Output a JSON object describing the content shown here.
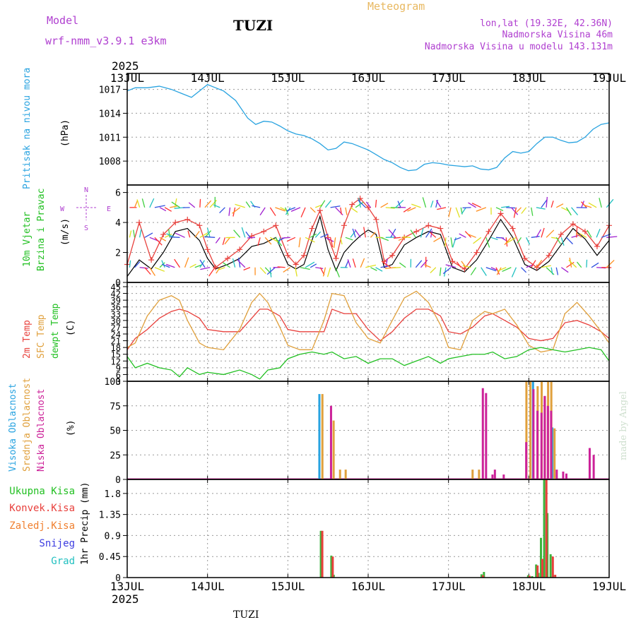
{
  "header": {
    "model_label": "Model",
    "model_name": "wrf-nmm_v3.9.1 e3km",
    "station": "TUZI",
    "meteogram_label": "Meteogram",
    "lonlat": "lon,lat (19.32E, 42.36N)",
    "elevation": "Nadmorska Visina 46m",
    "model_elevation": "Nadmorska Visina u modelu 143.131m",
    "year": "2025",
    "footer_station": "TUZI",
    "watermark": "made by Angel"
  },
  "colors": {
    "pressure": "#29a3e0",
    "wind_speed": "#000000",
    "gust": "#e8403c",
    "temp2m": "#e8403c",
    "sfc_temp": "#e0a03c",
    "dewpoint": "#22c022",
    "cloud_high": "#29a3e0",
    "cloud_mid": "#e0a03c",
    "cloud_low": "#cc2299",
    "precip_total": "#3cb43c",
    "precip_conv": "#e8403c",
    "precip_frozen": "#f08030",
    "snow": "#3c3ce0",
    "hail": "#22c0c0",
    "purple": "#b040d0",
    "gold": "#e8b860"
  },
  "chart_data": [
    {
      "type": "line",
      "title": "Pritisak na nivou mora",
      "ylabel": "(hPa)",
      "x_ticks": [
        "13JUL",
        "14JUL",
        "15JUL",
        "16JUL",
        "17JUL",
        "18JUL",
        "19JUL"
      ],
      "ylim": [
        1005,
        1019
      ],
      "y_ticks": [
        1008,
        1011,
        1014,
        1017
      ],
      "series": [
        {
          "name": "Pressure",
          "x": [
            0,
            0.1,
            0.25,
            0.4,
            0.55,
            0.7,
            0.8,
            0.9,
            1.0,
            1.1,
            1.2,
            1.35,
            1.5,
            1.6,
            1.7,
            1.8,
            1.9,
            2.0,
            2.1,
            2.2,
            2.3,
            2.4,
            2.5,
            2.6,
            2.7,
            2.8,
            2.9,
            3.0,
            3.1,
            3.2,
            3.3,
            3.4,
            3.5,
            3.6,
            3.7,
            3.8,
            3.9,
            4.0,
            4.1,
            4.2,
            4.3,
            4.4,
            4.5,
            4.6,
            4.7,
            4.8,
            4.9,
            5.0,
            5.1,
            5.2,
            5.3,
            5.4,
            5.5,
            5.6,
            5.7,
            5.8,
            5.9,
            6.0
          ],
          "values": [
            1016.8,
            1017.2,
            1017.2,
            1017.4,
            1017.0,
            1016.4,
            1016.0,
            1016.8,
            1017.6,
            1017.2,
            1016.8,
            1015.6,
            1013.4,
            1012.6,
            1013.0,
            1012.9,
            1012.4,
            1011.8,
            1011.4,
            1011.2,
            1010.8,
            1010.2,
            1009.4,
            1009.6,
            1010.4,
            1010.2,
            1009.8,
            1009.4,
            1008.8,
            1008.2,
            1007.8,
            1007.2,
            1006.8,
            1006.9,
            1007.6,
            1007.8,
            1007.7,
            1007.5,
            1007.4,
            1007.3,
            1007.4,
            1007.0,
            1006.9,
            1007.2,
            1008.4,
            1009.2,
            1009.0,
            1009.2,
            1010.2,
            1011.0,
            1011.0,
            1010.6,
            1010.3,
            1010.4,
            1011.0,
            1012.0,
            1012.6,
            1012.8
          ]
        }
      ]
    },
    {
      "type": "line",
      "title": "10m Vjetar Brzina i Pravac",
      "ylabel": "(m/s)",
      "compass": [
        "N",
        "S",
        "W",
        "E"
      ],
      "ylim": [
        0,
        6.5
      ],
      "y_ticks": [
        0,
        2,
        4,
        6
      ],
      "series": [
        {
          "name": "Wind speed",
          "x": [
            0,
            0.15,
            0.3,
            0.45,
            0.6,
            0.75,
            0.9,
            1.0,
            1.1,
            1.25,
            1.4,
            1.55,
            1.7,
            1.85,
            2.0,
            2.1,
            2.2,
            2.3,
            2.4,
            2.5,
            2.6,
            2.7,
            2.8,
            2.9,
            3.0,
            3.1,
            3.2,
            3.3,
            3.45,
            3.6,
            3.75,
            3.9,
            4.05,
            4.2,
            4.35,
            4.5,
            4.65,
            4.8,
            4.95,
            5.1,
            5.25,
            5.4,
            5.55,
            5.7,
            5.85,
            6.0
          ],
          "values": [
            0.4,
            1.5,
            0.9,
            2.0,
            3.4,
            3.6,
            2.8,
            1.6,
            0.9,
            1.2,
            1.6,
            2.4,
            2.6,
            3.0,
            1.2,
            0.9,
            1.2,
            2.8,
            4.4,
            2.2,
            0.8,
            2.0,
            2.6,
            3.1,
            3.5,
            3.2,
            1.0,
            1.2,
            2.5,
            3.0,
            3.4,
            3.2,
            1.0,
            0.7,
            1.5,
            2.8,
            4.2,
            3.0,
            1.2,
            0.8,
            1.4,
            2.5,
            3.6,
            2.9,
            1.8,
            2.8
          ]
        },
        {
          "name": "Gust",
          "x": [
            0,
            0.15,
            0.3,
            0.45,
            0.6,
            0.75,
            0.9,
            1.0,
            1.1,
            1.25,
            1.4,
            1.55,
            1.7,
            1.85,
            2.0,
            2.1,
            2.2,
            2.3,
            2.4,
            2.5,
            2.6,
            2.7,
            2.8,
            2.9,
            3.0,
            3.1,
            3.2,
            3.3,
            3.45,
            3.6,
            3.75,
            3.9,
            4.05,
            4.2,
            4.35,
            4.5,
            4.65,
            4.8,
            4.95,
            5.1,
            5.25,
            5.4,
            5.55,
            5.7,
            5.85,
            6.0
          ],
          "values": [
            1.2,
            4.0,
            1.5,
            3.2,
            4.0,
            4.2,
            3.8,
            2.2,
            1.0,
            1.6,
            2.2,
            3.1,
            3.4,
            3.8,
            1.8,
            1.2,
            1.8,
            3.6,
            4.8,
            3.0,
            1.6,
            3.8,
            5.2,
            5.6,
            5.0,
            4.2,
            1.4,
            1.8,
            3.0,
            3.4,
            3.8,
            3.6,
            1.4,
            0.9,
            2.0,
            3.4,
            4.6,
            3.6,
            1.6,
            1.0,
            1.8,
            3.2,
            3.9,
            3.4,
            2.4,
            3.8
          ]
        }
      ]
    },
    {
      "type": "line",
      "title": "2m Temp / SFC Temp / dewpt Temp",
      "ylabel": "(C)",
      "ylim": [
        3,
        45
      ],
      "y_ticks": [
        3,
        6,
        9,
        12,
        15,
        18,
        21,
        24,
        27,
        30,
        33,
        36,
        39,
        42,
        45
      ],
      "series": [
        {
          "name": "2m Temp",
          "x": [
            0,
            0.1,
            0.25,
            0.4,
            0.55,
            0.65,
            0.75,
            0.9,
            1.0,
            1.2,
            1.4,
            1.55,
            1.65,
            1.75,
            1.9,
            2.0,
            2.15,
            2.3,
            2.45,
            2.55,
            2.7,
            2.85,
            3.0,
            3.15,
            3.3,
            3.45,
            3.6,
            3.75,
            3.9,
            4.0,
            4.15,
            4.3,
            4.45,
            4.55,
            4.7,
            4.85,
            5.0,
            5.15,
            5.3,
            5.45,
            5.6,
            5.75,
            5.9,
            6.0
          ],
          "values": [
            17,
            22,
            26,
            31,
            34,
            35,
            34,
            31,
            26,
            25,
            25,
            31,
            35,
            35,
            32,
            26,
            25,
            25,
            25,
            35,
            33,
            33,
            26,
            21,
            25,
            31,
            35,
            35,
            32,
            25,
            24,
            27,
            32,
            33,
            30,
            27,
            22,
            21,
            22,
            29,
            30,
            28,
            25,
            22
          ]
        },
        {
          "name": "SFC Temp",
          "x": [
            0,
            0.1,
            0.25,
            0.4,
            0.55,
            0.65,
            0.75,
            0.9,
            1.0,
            1.2,
            1.4,
            1.55,
            1.65,
            1.75,
            1.9,
            2.0,
            2.15,
            2.3,
            2.45,
            2.55,
            2.7,
            2.85,
            3.0,
            3.15,
            3.3,
            3.45,
            3.6,
            3.75,
            3.9,
            4.0,
            4.15,
            4.3,
            4.45,
            4.55,
            4.7,
            4.85,
            5.0,
            5.15,
            5.3,
            5.45,
            5.6,
            5.75,
            5.9,
            6.0
          ],
          "values": [
            18,
            20,
            32,
            39,
            41,
            39,
            30,
            20,
            18,
            17,
            26,
            38,
            42,
            38,
            27,
            19,
            17,
            17,
            30,
            42,
            41,
            29,
            22,
            20,
            30,
            40,
            43,
            38,
            28,
            18,
            17,
            30,
            34,
            33,
            35,
            28,
            19,
            16,
            17,
            33,
            38,
            32,
            25,
            20
          ]
        },
        {
          "name": "dewpt Temp",
          "x": [
            0,
            0.1,
            0.25,
            0.4,
            0.55,
            0.65,
            0.75,
            0.9,
            1.0,
            1.2,
            1.4,
            1.55,
            1.65,
            1.75,
            1.9,
            2.0,
            2.15,
            2.3,
            2.45,
            2.55,
            2.7,
            2.85,
            3.0,
            3.15,
            3.3,
            3.45,
            3.6,
            3.75,
            3.9,
            4.0,
            4.15,
            4.3,
            4.45,
            4.55,
            4.7,
            4.85,
            5.0,
            5.15,
            5.3,
            5.45,
            5.6,
            5.75,
            5.9,
            6.0
          ],
          "values": [
            14,
            9,
            11,
            9,
            8,
            5,
            9,
            6,
            7,
            6,
            8,
            6,
            4,
            8,
            9,
            13,
            15,
            16,
            15,
            16,
            13,
            14,
            11,
            13,
            13,
            10,
            12,
            14,
            11,
            13,
            14,
            15,
            15,
            16,
            13,
            14,
            17,
            18,
            17,
            16,
            17,
            18,
            17,
            12
          ]
        }
      ]
    },
    {
      "type": "bar",
      "title": "Visoka / Srednja / Niska Oblacnost",
      "ylabel": "(%)",
      "ylim": [
        0,
        100
      ],
      "y_ticks": [
        0,
        25,
        50,
        75,
        100
      ],
      "series": [
        {
          "name": "Visoka Oblacnost",
          "x": [
            2.41,
            5.07,
            5.31
          ],
          "values": [
            87,
            100,
            53
          ]
        },
        {
          "name": "Srednja Oblacnost",
          "x": [
            2.43,
            2.57,
            2.65,
            2.72,
            4.3,
            4.38,
            4.97,
            5.02,
            5.11,
            5.16,
            5.2,
            5.24,
            5.28,
            5.32
          ],
          "values": [
            87,
            60,
            10,
            10,
            10,
            10,
            100,
            100,
            95,
            100,
            85,
            100,
            100,
            52
          ]
        },
        {
          "name": "Niska Oblacnost",
          "x": [
            2.52,
            4.41,
            4.45,
            4.53,
            4.56,
            4.67,
            4.95,
            5.04,
            5.09,
            5.14,
            5.18,
            5.22,
            5.26,
            5.33,
            5.41,
            5.45,
            5.74,
            5.79
          ],
          "values": [
            75,
            93,
            88,
            5,
            10,
            5,
            38,
            92,
            70,
            68,
            85,
            75,
            70,
            10,
            8,
            6,
            32,
            25
          ]
        }
      ]
    },
    {
      "type": "bar",
      "title": "1hr Precip",
      "ylabel": "(mm)",
      "legend": [
        "Ukupna Kisa",
        "Konvek.Kisa",
        "Zaledj.Kisa",
        "Snijeg",
        "Grad"
      ],
      "ylim": [
        0,
        2.1
      ],
      "y_ticks": [
        0,
        0.45,
        0.9,
        1.35,
        1.8
      ],
      "series": [
        {
          "name": "Ukupna Kisa",
          "x": [
            2.42,
            2.55,
            2.58,
            4.42,
            4.45,
            5.0,
            5.05,
            5.1,
            5.13,
            5.16,
            5.2,
            5.24,
            5.28,
            5.31
          ],
          "values": [
            1.0,
            0.47,
            0.06,
            0.07,
            0.12,
            0.05,
            0.03,
            0.28,
            0.1,
            0.85,
            2.1,
            1.38,
            0.5,
            0.06
          ]
        },
        {
          "name": "Konvek.Kisa",
          "x": [
            2.42,
            2.55,
            4.42,
            5.0,
            5.1,
            5.16,
            5.21,
            5.29,
            5.32
          ],
          "values": [
            1.0,
            0.45,
            0.05,
            0.04,
            0.26,
            0.4,
            2.1,
            0.45,
            0.06
          ]
        }
      ]
    }
  ]
}
